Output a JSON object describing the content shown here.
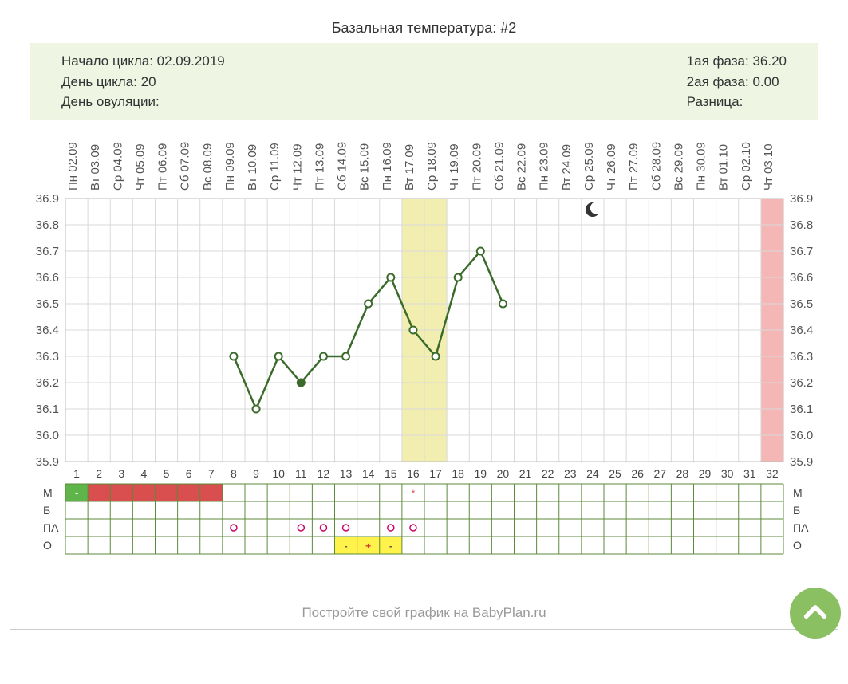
{
  "title": "Базальная температура: #2",
  "info_left": {
    "l1": "Начало цикла: 02.09.2019",
    "l2": "День цикла: 20",
    "l3": "День овуляции:"
  },
  "info_right": {
    "l1": "1ая фаза: 36.20",
    "l2": "2ая фаза: 0.00",
    "l3": "Разница:"
  },
  "footer": "Постройте свой график на BabyPlan.ru",
  "chart": {
    "colors": {
      "grid": "#d9d9d9",
      "axis_text": "#555",
      "line": "#3a6b2a",
      "marker_stroke": "#3a6b2a",
      "marker_fill": "#ffffff",
      "fertile_band": "#f2eeb0",
      "forecast_band": "#f5b6b6",
      "mens_fill": "#d94e4e",
      "mens_start_fill": "#5fb54a",
      "ovu_neg_fill": "#fff24a",
      "ovu_pos_fill": "#fff24a",
      "table_border": "#5c8a3a",
      "moon": "#333"
    },
    "y": {
      "min": 35.9,
      "max": 36.9,
      "step": 0.1,
      "labels": [
        "36.9",
        "36.8",
        "36.7",
        "36.6",
        "36.5",
        "36.4",
        "36.3",
        "36.2",
        "36.1",
        "36.0",
        "35.9"
      ]
    },
    "days": [
      {
        "n": 1,
        "wd": "Пн",
        "date": "02.09"
      },
      {
        "n": 2,
        "wd": "Вт",
        "date": "03.09"
      },
      {
        "n": 3,
        "wd": "Ср",
        "date": "04.09"
      },
      {
        "n": 4,
        "wd": "Чт",
        "date": "05.09"
      },
      {
        "n": 5,
        "wd": "Пт",
        "date": "06.09"
      },
      {
        "n": 6,
        "wd": "Сб",
        "date": "07.09"
      },
      {
        "n": 7,
        "wd": "Вс",
        "date": "08.09"
      },
      {
        "n": 8,
        "wd": "Пн",
        "date": "09.09"
      },
      {
        "n": 9,
        "wd": "Вт",
        "date": "10.09"
      },
      {
        "n": 10,
        "wd": "Ср",
        "date": "11.09"
      },
      {
        "n": 11,
        "wd": "Чт",
        "date": "12.09"
      },
      {
        "n": 12,
        "wd": "Пт",
        "date": "13.09"
      },
      {
        "n": 13,
        "wd": "Сб",
        "date": "14.09"
      },
      {
        "n": 14,
        "wd": "Вс",
        "date": "15.09"
      },
      {
        "n": 15,
        "wd": "Пн",
        "date": "16.09"
      },
      {
        "n": 16,
        "wd": "Вт",
        "date": "17.09"
      },
      {
        "n": 17,
        "wd": "Ср",
        "date": "18.09"
      },
      {
        "n": 18,
        "wd": "Чт",
        "date": "19.09"
      },
      {
        "n": 19,
        "wd": "Пт",
        "date": "20.09"
      },
      {
        "n": 20,
        "wd": "Сб",
        "date": "21.09"
      },
      {
        "n": 21,
        "wd": "Вс",
        "date": "22.09"
      },
      {
        "n": 22,
        "wd": "Пн",
        "date": "23.09"
      },
      {
        "n": 23,
        "wd": "Вт",
        "date": "24.09"
      },
      {
        "n": 24,
        "wd": "Ср",
        "date": "25.09"
      },
      {
        "n": 25,
        "wd": "Чт",
        "date": "26.09"
      },
      {
        "n": 26,
        "wd": "Пт",
        "date": "27.09"
      },
      {
        "n": 27,
        "wd": "Сб",
        "date": "28.09"
      },
      {
        "n": 28,
        "wd": "Вс",
        "date": "29.09"
      },
      {
        "n": 29,
        "wd": "Пн",
        "date": "30.09"
      },
      {
        "n": 30,
        "wd": "Вт",
        "date": "01.10"
      },
      {
        "n": 31,
        "wd": "Ср",
        "date": "02.10"
      },
      {
        "n": 32,
        "wd": "Чт",
        "date": "03.10"
      }
    ],
    "series": [
      {
        "day": 8,
        "t": 36.3
      },
      {
        "day": 9,
        "t": 36.1
      },
      {
        "day": 10,
        "t": 36.3
      },
      {
        "day": 11,
        "t": 36.2,
        "filled": true
      },
      {
        "day": 12,
        "t": 36.3
      },
      {
        "day": 13,
        "t": 36.3
      },
      {
        "day": 14,
        "t": 36.5
      },
      {
        "day": 15,
        "t": 36.6
      },
      {
        "day": 16,
        "t": 36.4
      },
      {
        "day": 17,
        "t": 36.3
      },
      {
        "day": 18,
        "t": 36.6
      },
      {
        "day": 19,
        "t": 36.7
      },
      {
        "day": 20,
        "t": 36.5
      }
    ],
    "fertile_highlight": [
      16,
      17
    ],
    "forecast_highlight": [
      32
    ],
    "moon_day": 24,
    "row_labels": [
      "М",
      "Б",
      "ПА",
      "О"
    ],
    "menstruation": {
      "start": 1,
      "end": 7,
      "open_start": true
    },
    "star_day": 16,
    "pa_days": [
      8,
      11,
      12,
      13,
      15,
      16
    ],
    "ovu_tests": [
      {
        "day": 13,
        "sym": "-"
      },
      {
        "day": 14,
        "sym": "+"
      },
      {
        "day": 15,
        "sym": "-"
      }
    ]
  }
}
